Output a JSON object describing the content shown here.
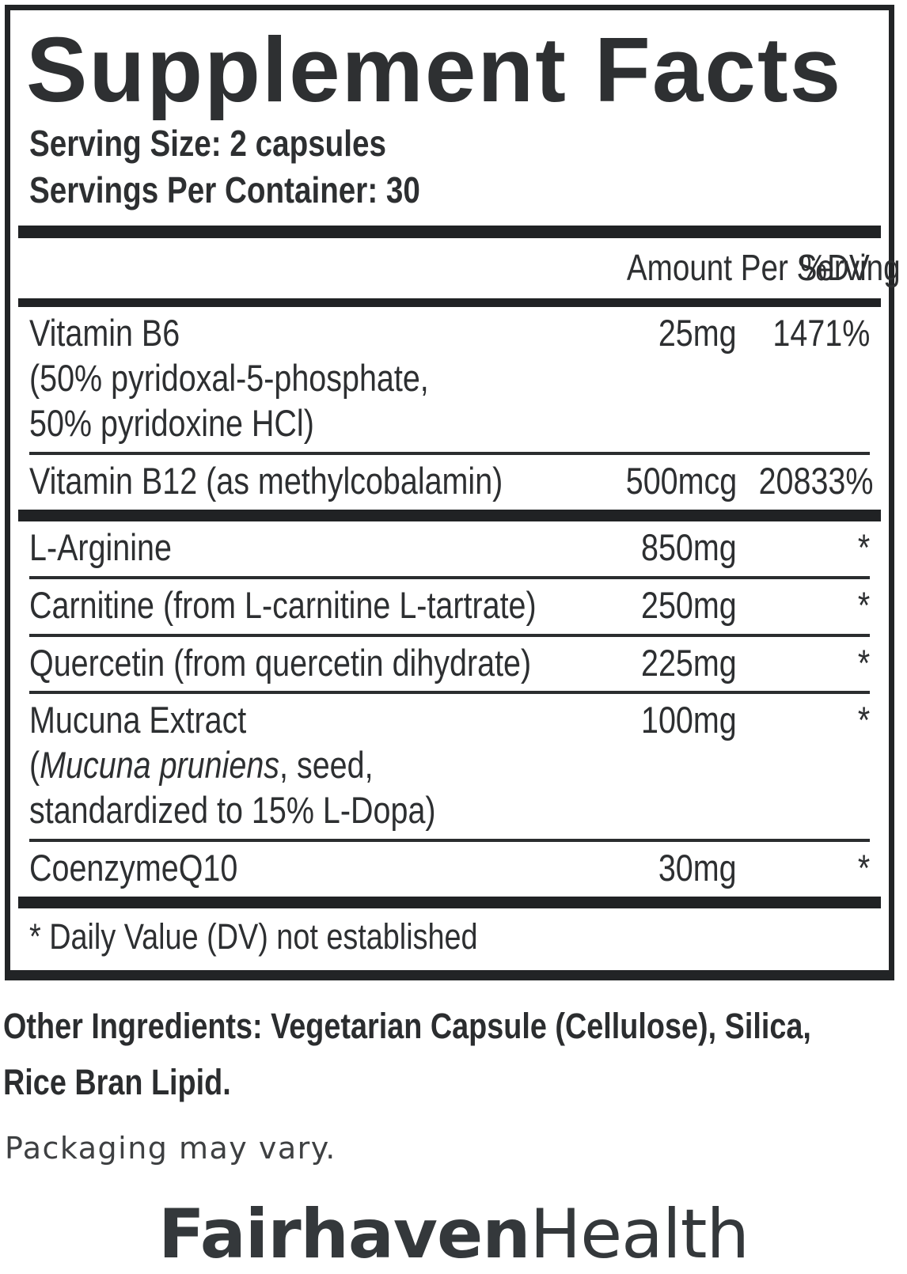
{
  "label": {
    "title": "Supplement Facts",
    "serving_size": "Serving Size: 2 capsules",
    "servings_per_container": "Servings Per Container: 30",
    "columns": {
      "amount": "Amount Per Serving",
      "dv": "%DV"
    },
    "rows": [
      {
        "name": "Vitamin B6",
        "detail1": "(50% pyridoxal-5-phosphate,",
        "detail2": "50% pyridoxine HCl)",
        "amount": "25mg",
        "dv": "1471%"
      },
      {
        "name": "Vitamin B12 (as methylcobalamin)",
        "amount": "500mcg",
        "dv": "20833%"
      },
      {
        "name": "L-Arginine",
        "amount": "850mg",
        "dv": "*"
      },
      {
        "name": "Carnitine (from L-carnitine L-tartrate)",
        "amount": "250mg",
        "dv": "*"
      },
      {
        "name": "Quercetin (from quercetin dihydrate)",
        "amount": "225mg",
        "dv": "*"
      },
      {
        "name": "Mucuna Extract",
        "detail1_open": "(",
        "detail1_italic": "Mucuna pruniens",
        "detail1_rest": ", seed,",
        "detail2": "standardized to 15% L-Dopa)",
        "amount": "100mg",
        "dv": "*"
      },
      {
        "name": "CoenzymeQ10",
        "amount": "30mg",
        "dv": "*"
      }
    ],
    "footnote": "* Daily Value (DV) not established"
  },
  "other_ingredients": {
    "line1": "Other Ingredients: Vegetarian Capsule (Cellulose), Silica,",
    "line2": "Rice Bran Lipid."
  },
  "packaging_note": "Packaging may vary.",
  "brand": {
    "name_bold": "Fairhaven",
    "name_light": "Health"
  },
  "colors": {
    "ink": "#2d2f31",
    "bar": "#202224",
    "border": "#222426",
    "brand": "#34383b"
  }
}
